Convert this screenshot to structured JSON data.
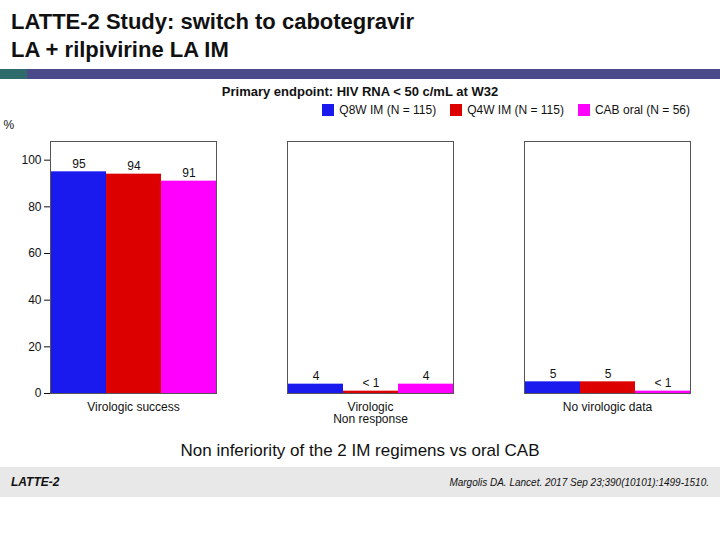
{
  "chart_data": {
    "type": "bar",
    "title": "LATTE-2 Study: switch to cabotegravir\nLA + rilpivirine LA IM",
    "subtitle": "Primary endpoint: HIV RNA < 50 c/mL at W32",
    "categories": [
      "Virologic success",
      "Virologic\nNon response",
      "No virologic data"
    ],
    "series": [
      {
        "name": "Q8W IM (N = 115)",
        "color": "#1a1aee",
        "values": [
          95,
          4,
          5
        ],
        "value_labels": [
          "95",
          "4",
          "5"
        ]
      },
      {
        "name": "Q4W IM (N = 115)",
        "color": "#dd0000",
        "values": [
          94,
          1,
          5
        ],
        "value_labels": [
          "94",
          "< 1",
          "5"
        ]
      },
      {
        "name": "CAB oral (N = 56)",
        "color": "#ff00ff",
        "values": [
          91,
          4,
          1
        ],
        "value_labels": [
          "91",
          "4",
          "< 1"
        ]
      }
    ],
    "y_label": "%",
    "ylim": [
      0,
      108
    ],
    "yticks": [
      0,
      20,
      40,
      60,
      80,
      100
    ],
    "data_labels": true,
    "grid": false,
    "legend": "upper right",
    "annotations": [
      "Non inferiority of the 2 IM regimens vs oral CAB",
      "LATTE-2",
      "Margolis DA. Lancet. 2017 Sep 23;390(10101):1499-1510."
    ]
  }
}
